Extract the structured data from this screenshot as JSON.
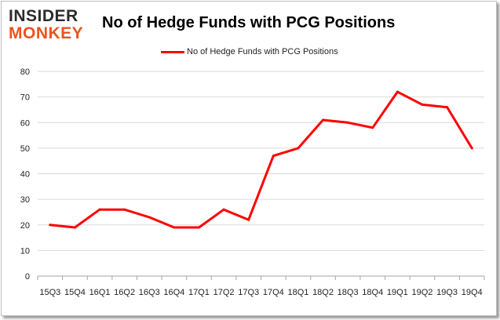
{
  "logo": {
    "line1": "INSIDER",
    "line2": "MONKEY"
  },
  "colors": {
    "series": "#ff0000",
    "grid": "#d9d9d9",
    "axis": "#a6a6a6",
    "logo_accent": "#e8541e"
  },
  "chart_data": {
    "type": "line",
    "title": "No of Hedge Funds with PCG Positions",
    "categories": [
      "15Q3",
      "15Q4",
      "16Q1",
      "16Q2",
      "16Q3",
      "16Q4",
      "17Q1",
      "17Q2",
      "17Q3",
      "17Q4",
      "18Q1",
      "18Q2",
      "18Q3",
      "18Q4",
      "19Q1",
      "19Q2",
      "19Q3",
      "19Q4"
    ],
    "series": [
      {
        "name": "No of Hedge Funds with PCG Positions",
        "values": [
          20,
          19,
          26,
          26,
          23,
          19,
          19,
          26,
          22,
          47,
          50,
          61,
          60,
          58,
          72,
          67,
          66,
          50
        ]
      }
    ],
    "ylim": [
      0,
      80
    ],
    "yticks": [
      0,
      10,
      20,
      30,
      40,
      50,
      60,
      70,
      80
    ],
    "grid": true,
    "legend_position": "top"
  }
}
